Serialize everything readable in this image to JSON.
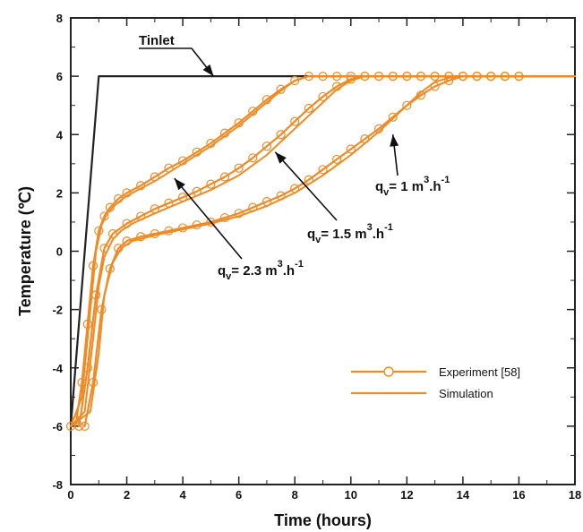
{
  "chart_data": {
    "type": "line",
    "title": "",
    "xlabel": "Time (hours)",
    "ylabel": "Temperature (℃)",
    "xlim": [
      0,
      18
    ],
    "ylim": [
      -8,
      8
    ],
    "x_ticks": [
      0,
      2,
      4,
      6,
      8,
      10,
      12,
      14,
      16,
      18
    ],
    "y_ticks": [
      -8,
      -6,
      -4,
      -2,
      0,
      2,
      4,
      6,
      8
    ],
    "grid": false,
    "legend_position": "bottom-right",
    "legend": [
      {
        "label": "Experiment [58]",
        "style": "line-circle"
      },
      {
        "label": "Simulation",
        "style": "line"
      }
    ],
    "series": [
      {
        "name": "Tinlet",
        "color": "#222222",
        "x": [
          0,
          1,
          18
        ],
        "y": [
          -6,
          6,
          6
        ]
      },
      {
        "name": "qv = 2.3 m3.h-1 (Simulation)",
        "color": "#f08a24",
        "x": [
          0,
          0.4,
          0.7,
          0.9,
          1.1,
          1.3,
          1.6,
          2.0,
          3.0,
          4.0,
          5.0,
          6.0,
          7.0,
          7.5,
          8.0,
          8.5,
          9.0,
          18
        ],
        "y": [
          -6,
          -5,
          -2,
          0,
          0.9,
          1.3,
          1.6,
          1.9,
          2.4,
          3.0,
          3.6,
          4.3,
          5.1,
          5.5,
          5.85,
          6.0,
          6.0,
          6.0
        ]
      },
      {
        "name": "qv = 2.3 m3.h-1 (Experiment [58])",
        "color": "#f08a24",
        "x": [
          0,
          0.2,
          0.4,
          0.6,
          0.8,
          1.0,
          1.2,
          1.4,
          1.7,
          2.0,
          2.5,
          3.0,
          3.5,
          4.0,
          4.5,
          5.0,
          5.5,
          6.0,
          6.5,
          7.0,
          7.5,
          8.0,
          8.5,
          9.0,
          9.5,
          10.0,
          10.5,
          11.0,
          11.5,
          12.0,
          12.5,
          13.0,
          13.5,
          14.0,
          14.5,
          15.0,
          15.5,
          16.0
        ],
        "y": [
          -6,
          -5.8,
          -4.5,
          -2.5,
          -0.5,
          0.7,
          1.2,
          1.5,
          1.8,
          2.0,
          2.25,
          2.55,
          2.85,
          3.1,
          3.4,
          3.7,
          4.05,
          4.4,
          4.8,
          5.2,
          5.55,
          5.85,
          6.0,
          6.0,
          6.0,
          6.0,
          6.0,
          6.0,
          6.0,
          6.0,
          6.0,
          6.0,
          6.0,
          6.0,
          6.0,
          6.0,
          6.0,
          6.0
        ]
      },
      {
        "name": "qv = 1.5 m3.h-1 (Simulation)",
        "color": "#f08a24",
        "x": [
          0,
          0.5,
          0.8,
          1.0,
          1.2,
          1.5,
          1.8,
          2.2,
          3.0,
          4.0,
          5.0,
          6.0,
          7.0,
          8.0,
          9.0,
          9.5,
          10.0,
          10.5,
          11.0,
          18
        ],
        "y": [
          -6,
          -5.5,
          -3,
          -1.2,
          -0.2,
          0.4,
          0.7,
          0.95,
          1.3,
          1.7,
          2.1,
          2.6,
          3.3,
          4.2,
          5.1,
          5.55,
          5.85,
          6.0,
          6.0,
          6.0
        ]
      },
      {
        "name": "qv = 1.5 m3.h-1 (Experiment [58])",
        "color": "#f08a24",
        "x": [
          0.3,
          0.6,
          0.9,
          1.2,
          1.5,
          2.0,
          2.5,
          3.0,
          3.5,
          4.0,
          4.5,
          5.0,
          5.5,
          6.0,
          6.5,
          7.0,
          7.5,
          8.0,
          8.5,
          9.0,
          9.5,
          10.0,
          10.5,
          11.0,
          11.5,
          12.0,
          12.5,
          13.0,
          13.5,
          14.0,
          14.5,
          15.0,
          15.5,
          16.0
        ],
        "y": [
          -6.0,
          -4.0,
          -1.5,
          0.1,
          0.6,
          0.95,
          1.2,
          1.45,
          1.65,
          1.85,
          2.05,
          2.3,
          2.55,
          2.85,
          3.2,
          3.6,
          4.0,
          4.45,
          4.9,
          5.3,
          5.65,
          5.9,
          6.0,
          6.0,
          6.0,
          6.0,
          6.0,
          6.0,
          6.0,
          6.0,
          6.0,
          6.0,
          6.0,
          6.0
        ]
      },
      {
        "name": "qv = 1 m3.h-1 (Simulation)",
        "color": "#f08a24",
        "x": [
          0,
          0.7,
          1.0,
          1.2,
          1.5,
          1.8,
          2.2,
          3.0,
          4.0,
          5.0,
          6.0,
          7.0,
          8.0,
          9.0,
          10.0,
          11.0,
          12.0,
          12.5,
          13.0,
          13.5,
          14.0,
          18
        ],
        "y": [
          -6,
          -5.5,
          -3.5,
          -1.5,
          -0.4,
          0.1,
          0.35,
          0.55,
          0.75,
          0.95,
          1.2,
          1.55,
          2.0,
          2.6,
          3.3,
          4.1,
          5.0,
          5.45,
          5.8,
          5.95,
          6.0,
          6.0
        ]
      },
      {
        "name": "qv = 1 m3.h-1 (Experiment [58])",
        "color": "#f08a24",
        "x": [
          0.5,
          0.8,
          1.1,
          1.4,
          1.7,
          2.0,
          2.5,
          3.0,
          3.5,
          4.0,
          4.5,
          5.0,
          5.5,
          6.0,
          6.5,
          7.0,
          7.5,
          8.0,
          8.5,
          9.0,
          9.5,
          10.0,
          10.5,
          11.0,
          11.5,
          12.0,
          12.5,
          13.0,
          13.5,
          14.0,
          14.5,
          15.0,
          15.5,
          16.0
        ],
        "y": [
          -6.0,
          -4.5,
          -2.0,
          -0.6,
          0.1,
          0.35,
          0.5,
          0.6,
          0.7,
          0.8,
          0.9,
          1.0,
          1.15,
          1.3,
          1.5,
          1.7,
          1.9,
          2.15,
          2.45,
          2.8,
          3.15,
          3.5,
          3.85,
          4.2,
          4.6,
          5.0,
          5.35,
          5.65,
          5.85,
          6.0,
          6.0,
          6.0,
          6.0,
          6.0
        ]
      }
    ],
    "annotations": [
      {
        "text": "Tinlet",
        "pointer": {
          "x": 5.1,
          "y": 6.0
        }
      },
      {
        "main": "q",
        "sub": "v",
        "mid": "= 1 m",
        "sup": "3",
        "dot": ".h",
        "sup2": "-1",
        "pointer": {
          "x": 11.5,
          "y": 4.0
        }
      },
      {
        "main": "q",
        "sub": "v",
        "mid": "= 1.5 m",
        "sup": "3",
        "dot": ".h",
        "sup2": "-1",
        "pointer": {
          "x": 7.3,
          "y": 3.4
        }
      },
      {
        "main": "q",
        "sub": "v",
        "mid": "= 2.3 m",
        "sup": "3",
        "dot": ".h",
        "sup2": "-1",
        "pointer": {
          "x": 3.7,
          "y": 2.5
        }
      }
    ]
  }
}
